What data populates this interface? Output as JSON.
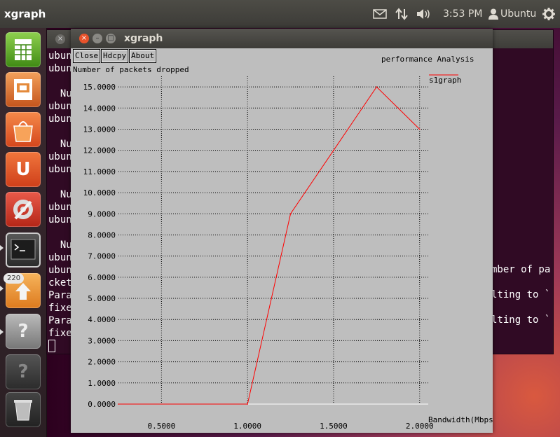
{
  "panel": {
    "app_title": "xgraph",
    "time": "3:53 PM",
    "user": "Ubuntu"
  },
  "launcher": {
    "badge": "220",
    "items": [
      {
        "name": "libreoffice-calc",
        "color": "#4e9a06"
      },
      {
        "name": "libreoffice-impress",
        "color": "#d46b2a"
      },
      {
        "name": "software-center",
        "color": "#e3652a"
      },
      {
        "name": "ubuntu-one",
        "color": "#e0542a"
      },
      {
        "name": "system-settings",
        "color": "#c8352a"
      },
      {
        "name": "terminal",
        "color": "#444444"
      },
      {
        "name": "update-manager",
        "color": "#e8902e"
      },
      {
        "name": "unknown-app",
        "color": "#8a8a8a"
      },
      {
        "name": "unknown-app-2",
        "color": "#555555"
      },
      {
        "name": "trash",
        "color": "#666666"
      }
    ]
  },
  "terminal": {
    "lines": [
      "ubun",
      "ubun",
      "",
      "  Num",
      "ubun",
      "ubun",
      "",
      "  Num",
      "ubun",
      "ubun",
      "",
      "  Num",
      "ubun",
      "ubun",
      "",
      "  Num",
      "ubun",
      "ubun",
      "cket",
      "Para",
      "fixe",
      "Para",
      "fixe"
    ],
    "right_lines": [
      "mber of pa",
      "",
      "lting to `",
      "",
      "lting to `"
    ]
  },
  "xgraph": {
    "title": "xgraph",
    "buttons": {
      "close": "Close",
      "hdcpy": "Hdcpy",
      "about": "About"
    },
    "y_axis_title": "Number of packets dropped",
    "graph_title": "performance  Analysis",
    "legend": "s1graph",
    "x_axis_title": "Bandwidth(Mbps)"
  },
  "chart_data": {
    "type": "line",
    "title": "performance  Analysis",
    "xlabel": "Bandwidth(Mbps)",
    "ylabel": "Number of packets dropped",
    "xlim": [
      0.25,
      2.05
    ],
    "ylim": [
      0,
      15.5
    ],
    "x_ticks": [
      "0.5000",
      "1.0000",
      "1.5000",
      "2.0000"
    ],
    "y_ticks": [
      "0.0000",
      "1.0000",
      "2.0000",
      "3.0000",
      "4.0000",
      "5.0000",
      "6.0000",
      "7.0000",
      "8.0000",
      "9.0000",
      "10.0000",
      "11.0000",
      "12.0000",
      "13.0000",
      "14.0000",
      "15.0000"
    ],
    "grid": true,
    "legend_position": "top-right",
    "series": [
      {
        "name": "s1graph",
        "color": "#ff0000",
        "x": [
          0.25,
          1.0,
          1.25,
          1.5,
          1.75,
          2.0
        ],
        "y": [
          0,
          0,
          9,
          12,
          15,
          13
        ]
      }
    ]
  }
}
